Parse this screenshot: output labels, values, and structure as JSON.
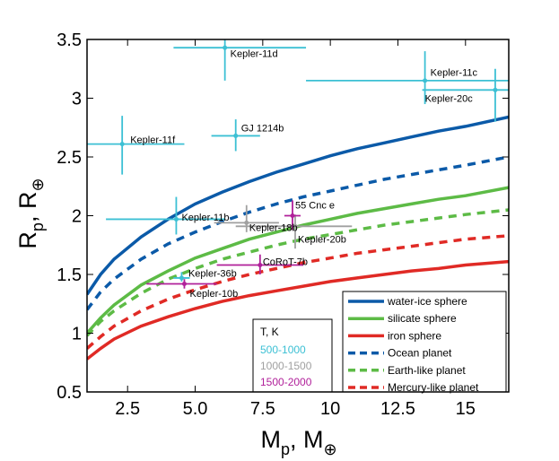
{
  "chart_data": {
    "type": "scatter",
    "title": "",
    "xlabel": "M",
    "xlabel_sub": "p",
    "xlabel_tail": ", M",
    "ylabel": "R",
    "ylabel_sub": "p",
    "ylabel_tail": ", R",
    "unit_symbol": "⊕",
    "xlim": [
      1,
      16.6
    ],
    "ylim": [
      0.5,
      3.5
    ],
    "xticks": [
      2.5,
      5.0,
      7.5,
      10,
      12.5,
      15
    ],
    "xtick_labels": [
      "2.5",
      "5.0",
      "7.5",
      "10",
      "12.5",
      "15"
    ],
    "yticks": [
      0.5,
      1,
      1.5,
      2,
      2.5,
      3,
      3.5
    ],
    "ytick_labels": [
      "0.5",
      "1",
      "1.5",
      "2",
      "2.5",
      "3",
      "3.5"
    ],
    "curves": [
      {
        "name": "water-ice sphere",
        "color": "#0b5aa8",
        "style": "solid",
        "x": [
          1,
          1.5,
          2,
          3,
          4,
          5,
          6,
          7,
          8,
          9,
          10,
          11,
          12,
          13,
          14,
          15,
          16.6
        ],
        "y": [
          1.33,
          1.5,
          1.63,
          1.82,
          1.97,
          2.1,
          2.2,
          2.29,
          2.37,
          2.44,
          2.51,
          2.57,
          2.62,
          2.67,
          2.72,
          2.76,
          2.84
        ]
      },
      {
        "name": "silicate sphere",
        "color": "#5dbb46",
        "style": "solid",
        "x": [
          1,
          1.5,
          2,
          3,
          4,
          5,
          6,
          7,
          8,
          9,
          10,
          11,
          12,
          13,
          14,
          15,
          16.6
        ],
        "y": [
          1.0,
          1.13,
          1.24,
          1.41,
          1.53,
          1.64,
          1.72,
          1.8,
          1.86,
          1.92,
          1.97,
          2.02,
          2.06,
          2.1,
          2.14,
          2.17,
          2.24
        ]
      },
      {
        "name": "iron sphere",
        "color": "#e02a25",
        "style": "solid",
        "x": [
          1,
          1.5,
          2,
          3,
          4,
          5,
          6,
          7,
          8,
          9,
          10,
          11,
          12,
          13,
          14,
          15,
          16.6
        ],
        "y": [
          0.78,
          0.87,
          0.95,
          1.06,
          1.14,
          1.21,
          1.27,
          1.32,
          1.36,
          1.4,
          1.44,
          1.47,
          1.5,
          1.53,
          1.55,
          1.58,
          1.61
        ]
      },
      {
        "name": "Ocean planet",
        "color": "#0b5aa8",
        "style": "dashed",
        "x": [
          1,
          1.5,
          2,
          3,
          4,
          5,
          6,
          7,
          8,
          9,
          10,
          11,
          12,
          13,
          14,
          15,
          16.6
        ],
        "y": [
          1.2,
          1.35,
          1.46,
          1.63,
          1.76,
          1.86,
          1.95,
          2.03,
          2.1,
          2.16,
          2.21,
          2.26,
          2.31,
          2.35,
          2.39,
          2.43,
          2.5
        ]
      },
      {
        "name": "Earth-like planet",
        "color": "#5dbb46",
        "style": "dashed",
        "x": [
          1,
          1.5,
          2,
          3,
          4,
          5,
          6,
          7,
          8,
          9,
          10,
          11,
          12,
          13,
          14,
          15,
          16.6
        ],
        "y": [
          0.98,
          1.1,
          1.19,
          1.34,
          1.46,
          1.55,
          1.63,
          1.69,
          1.75,
          1.8,
          1.84,
          1.88,
          1.92,
          1.95,
          1.98,
          2.01,
          2.05
        ]
      },
      {
        "name": "Mercury-like planet",
        "color": "#e02a25",
        "style": "dashed",
        "x": [
          1,
          1.5,
          2,
          3,
          4,
          5,
          6,
          7,
          8,
          9,
          10,
          11,
          12,
          13,
          14,
          15,
          16.6
        ],
        "y": [
          0.87,
          0.97,
          1.06,
          1.19,
          1.29,
          1.37,
          1.44,
          1.5,
          1.55,
          1.6,
          1.64,
          1.68,
          1.71,
          1.74,
          1.77,
          1.8,
          1.83
        ]
      }
    ],
    "planets": [
      {
        "name": "Kepler-11d",
        "x": 6.1,
        "y": 3.43,
        "xerr": [
          4.2,
          9.1
        ],
        "yerr": [
          3.15,
          3.5
        ],
        "group": "500-1000",
        "label_dx": 0.2,
        "label_dy": -0.05
      },
      {
        "name": "Kepler-11c",
        "x": 13.5,
        "y": 3.15,
        "xerr": [
          9.1,
          16.6
        ],
        "yerr": [
          2.95,
          3.4
        ],
        "group": "500-1000",
        "label_dx": 0.2,
        "label_dy": 0.07
      },
      {
        "name": "Kepler-20c",
        "x": 16.1,
        "y": 3.07,
        "xerr": [
          13.4,
          16.6
        ],
        "yerr": [
          2.8,
          3.25
        ],
        "group": "500-1000",
        "label_dx": -2.6,
        "label_dy": -0.07
      },
      {
        "name": "Kepler-11f",
        "x": 2.3,
        "y": 2.61,
        "xerr": [
          1.0,
          4.6
        ],
        "yerr": [
          2.35,
          2.85
        ],
        "group": "500-1000",
        "label_dx": 0.3,
        "label_dy": 0.04
      },
      {
        "name": "GJ 1214b",
        "x": 6.5,
        "y": 2.68,
        "xerr": [
          5.6,
          7.4
        ],
        "yerr": [
          2.55,
          2.82
        ],
        "group": "500-1000",
        "label_dx": 0.2,
        "label_dy": 0.07
      },
      {
        "name": "Kepler-11b",
        "x": 4.3,
        "y": 1.97,
        "xerr": [
          1.7,
          6.1
        ],
        "yerr": [
          1.84,
          2.16
        ],
        "group": "500-1000",
        "label_dx": 0.2,
        "label_dy": 0.02
      },
      {
        "name": "Kepler-18b",
        "x": 6.9,
        "y": 1.94,
        "xerr": [
          5.7,
          8.1
        ],
        "yerr": [
          1.86,
          2.09
        ],
        "group": "1000-1500",
        "label_dx": 0.1,
        "label_dy": -0.04
      },
      {
        "name": "Kepler-20b",
        "x": 8.7,
        "y": 1.91,
        "xerr": [
          6.5,
          10.8
        ],
        "yerr": [
          1.72,
          2.01
        ],
        "group": "1000-1500",
        "label_dx": 0.1,
        "label_dy": -0.11
      },
      {
        "name": "55 Cnc e",
        "x": 8.6,
        "y": 2.0,
        "xerr": [
          8.3,
          8.9
        ],
        "yerr": [
          1.88,
          2.13
        ],
        "group": "1500-2000",
        "label_dx": 0.1,
        "label_dy": 0.09
      },
      {
        "name": "CoRoT-7b",
        "x": 7.4,
        "y": 1.58,
        "xerr": [
          5.8,
          9.0
        ],
        "yerr": [
          1.5,
          1.67
        ],
        "group": "1500-2000",
        "label_dx": 0.1,
        "label_dy": 0.03
      },
      {
        "name": "Kepler-36b",
        "x": 4.5,
        "y": 1.47,
        "xerr": [
          4.2,
          4.8
        ],
        "yerr": [
          1.44,
          1.52
        ],
        "group": "500-1000",
        "label_dx": 0.25,
        "label_dy": 0.04
      },
      {
        "name": "Kepler-10b",
        "x": 4.6,
        "y": 1.42,
        "xerr": [
          3.2,
          5.8
        ],
        "yerr": [
          1.38,
          1.46
        ],
        "group": "1500-2000",
        "label_dx": 0.2,
        "label_dy": -0.08
      }
    ],
    "legend": {
      "placement": "bottom-right",
      "entries": [
        "water-ice sphere",
        "silicate sphere",
        "iron sphere",
        "Ocean planet",
        "Earth-like planet",
        "Mercury-like planet"
      ]
    },
    "temp_legend": {
      "title": "T, K",
      "placement": "bottom-center",
      "groups": [
        {
          "label": "500-1000",
          "color": "#3cc0d4"
        },
        {
          "label": "1000-1500",
          "color": "#a0a0a0"
        },
        {
          "label": "1500-2000",
          "color": "#b0209a"
        }
      ]
    }
  }
}
